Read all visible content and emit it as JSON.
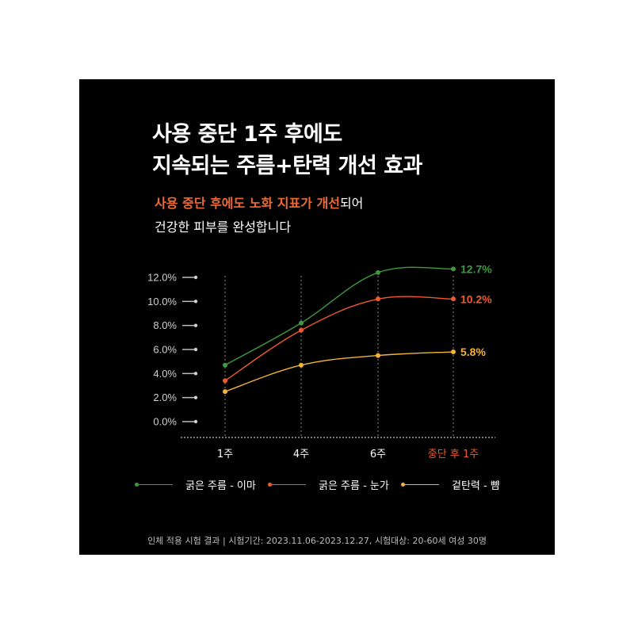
{
  "title": {
    "line1": "사용 중단 1주 후에도",
    "line2": "지속되는 주름+탄력 개선 효과"
  },
  "subtitle": {
    "highlight": "사용 중단 후에도 노화 지표가 개선",
    "rest": "되어",
    "line2": "건강한 피부를 완성합니다"
  },
  "colors": {
    "background": "#000000",
    "highlight": "#ee6a35",
    "green": "#3e9a3e",
    "orange": "#ee5a2c",
    "yellow": "#f2b43a",
    "axis": "#bdbdbd"
  },
  "chart_data": {
    "type": "line",
    "title": "",
    "xlabel": "",
    "ylabel": "",
    "categories": [
      "1주",
      "4주",
      "6주",
      "중단 후 1주"
    ],
    "highlight_category": "중단 후 1주",
    "y_ticks": [
      "0.0%",
      "2.0%",
      "4.0%",
      "6.0%",
      "8.0%",
      "10.0%",
      "12.0%"
    ],
    "ylim": [
      0,
      12
    ],
    "grid": "vertical dotted lines at categories",
    "legend_position": "bottom",
    "series": [
      {
        "name": "굵은 주름 - 이마",
        "color": "#3e9a3e",
        "values": [
          4.7,
          8.2,
          12.4,
          12.7
        ],
        "end_label": "12.7%"
      },
      {
        "name": "굵은 주름 - 눈가",
        "color": "#ee5a2c",
        "values": [
          3.4,
          7.6,
          10.2,
          10.2
        ],
        "end_label": "10.2%"
      },
      {
        "name": "겉탄력 - 뺨",
        "color": "#f2b43a",
        "values": [
          2.5,
          4.7,
          5.5,
          5.8
        ],
        "end_label": "5.8%"
      }
    ]
  },
  "footnote": "인체 적용 시험 결과 | 시험기간: 2023.11.06-2023.12.27, 시험대상: 20-60세 여성 30명"
}
